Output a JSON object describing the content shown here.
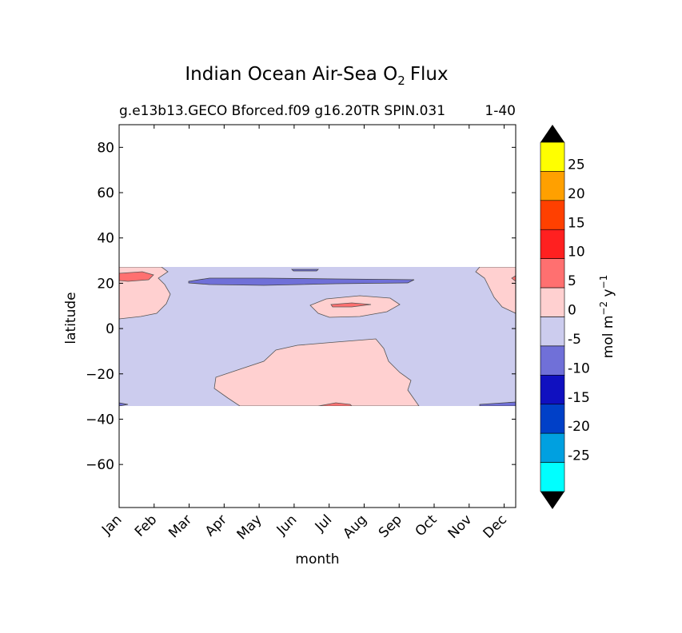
{
  "chart_data": {
    "type": "heatmap",
    "title": "Indian Ocean Air-Sea O",
    "title_subscript": "2",
    "title_suffix": "Flux",
    "subtitle_left": "g.e13b13.GECO Bforced.f09 g16.20TR SPIN.031",
    "subtitle_right": "1-40",
    "xlabel": "month",
    "ylabel": "latitude",
    "x_categories": [
      "Jan",
      "Feb",
      "Mar",
      "Apr",
      "May",
      "Jun",
      "Jul",
      "Aug",
      "Sep",
      "Oct",
      "Nov",
      "Dec"
    ],
    "xlim": [
      1,
      12.33
    ],
    "ylim": [
      -79,
      90
    ],
    "yticks": [
      80,
      60,
      40,
      20,
      0,
      -20,
      -40,
      -60
    ],
    "ytick_labels": [
      "80",
      "60",
      "40",
      "20",
      "0",
      "−20",
      "−40",
      "−60"
    ],
    "data_lat_range": [
      -34,
      27.5
    ],
    "colorbar": {
      "label": "mol m",
      "label_sup1": "−2",
      "label_mid": " y",
      "label_sup2": "−1",
      "extend": "both",
      "tick_labels": [
        "25",
        "20",
        "15",
        "10",
        "5",
        "0",
        "-5",
        "-10",
        "-15",
        "-20",
        "-25"
      ],
      "levels": [
        -30,
        -25,
        -20,
        -15,
        -10,
        -5,
        0,
        5,
        10,
        15,
        20,
        25,
        30
      ],
      "colors": [
        "#00ffff",
        "#00a0e0",
        "#0040c8",
        "#1010c0",
        "#7070d8",
        "#ccccee",
        "#ffd0d0",
        "#ff7070",
        "#ff2020",
        "#ff4000",
        "#ffa000",
        "#ffff00"
      ],
      "under_color": "#000000",
      "over_color": "#000000"
    },
    "regions": [
      {
        "name": "background",
        "value_range": "-5 to 0",
        "color": "#ccccee"
      },
      {
        "name": "positive",
        "value_range": "0 to 5",
        "color": "#ffd0d0"
      },
      {
        "name": "positive-strong",
        "value_range": "5 to 10",
        "color": "#ff7070"
      },
      {
        "name": "negative",
        "value_range": "-10 to -5",
        "color": "#7070d8"
      }
    ]
  }
}
